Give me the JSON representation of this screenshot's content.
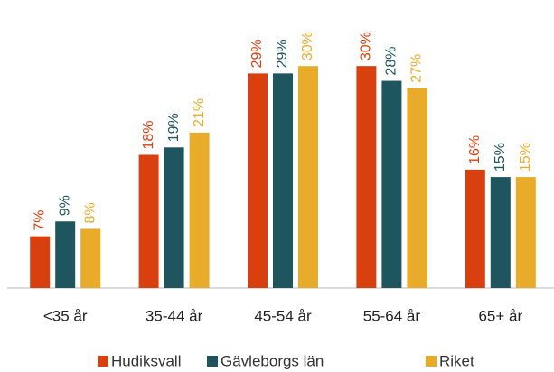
{
  "chart_data": {
    "type": "bar",
    "categories": [
      "<35 år",
      "35-44 år",
      "45-54 år",
      "55-64 år",
      "65+ år"
    ],
    "series": [
      {
        "name": "Hudiksvall",
        "color": "#d9400f",
        "values": [
          7,
          18,
          29,
          30,
          16
        ],
        "value_labels": [
          "7%",
          "18%",
          "29%",
          "30%",
          "16%"
        ]
      },
      {
        "name": "Gävleborgs län",
        "color": "#1f555e",
        "values": [
          9,
          19,
          29,
          28,
          15
        ],
        "value_labels": [
          "9%",
          "19%",
          "29%",
          "28%",
          "15%"
        ]
      },
      {
        "name": "Riket",
        "color": "#e8ac2a",
        "values": [
          8,
          21,
          30,
          27,
          15
        ],
        "value_labels": [
          "8%",
          "21%",
          "30%",
          "27%",
          "15%"
        ]
      }
    ],
    "ylim": [
      0,
      36
    ],
    "legend": "bottom"
  }
}
